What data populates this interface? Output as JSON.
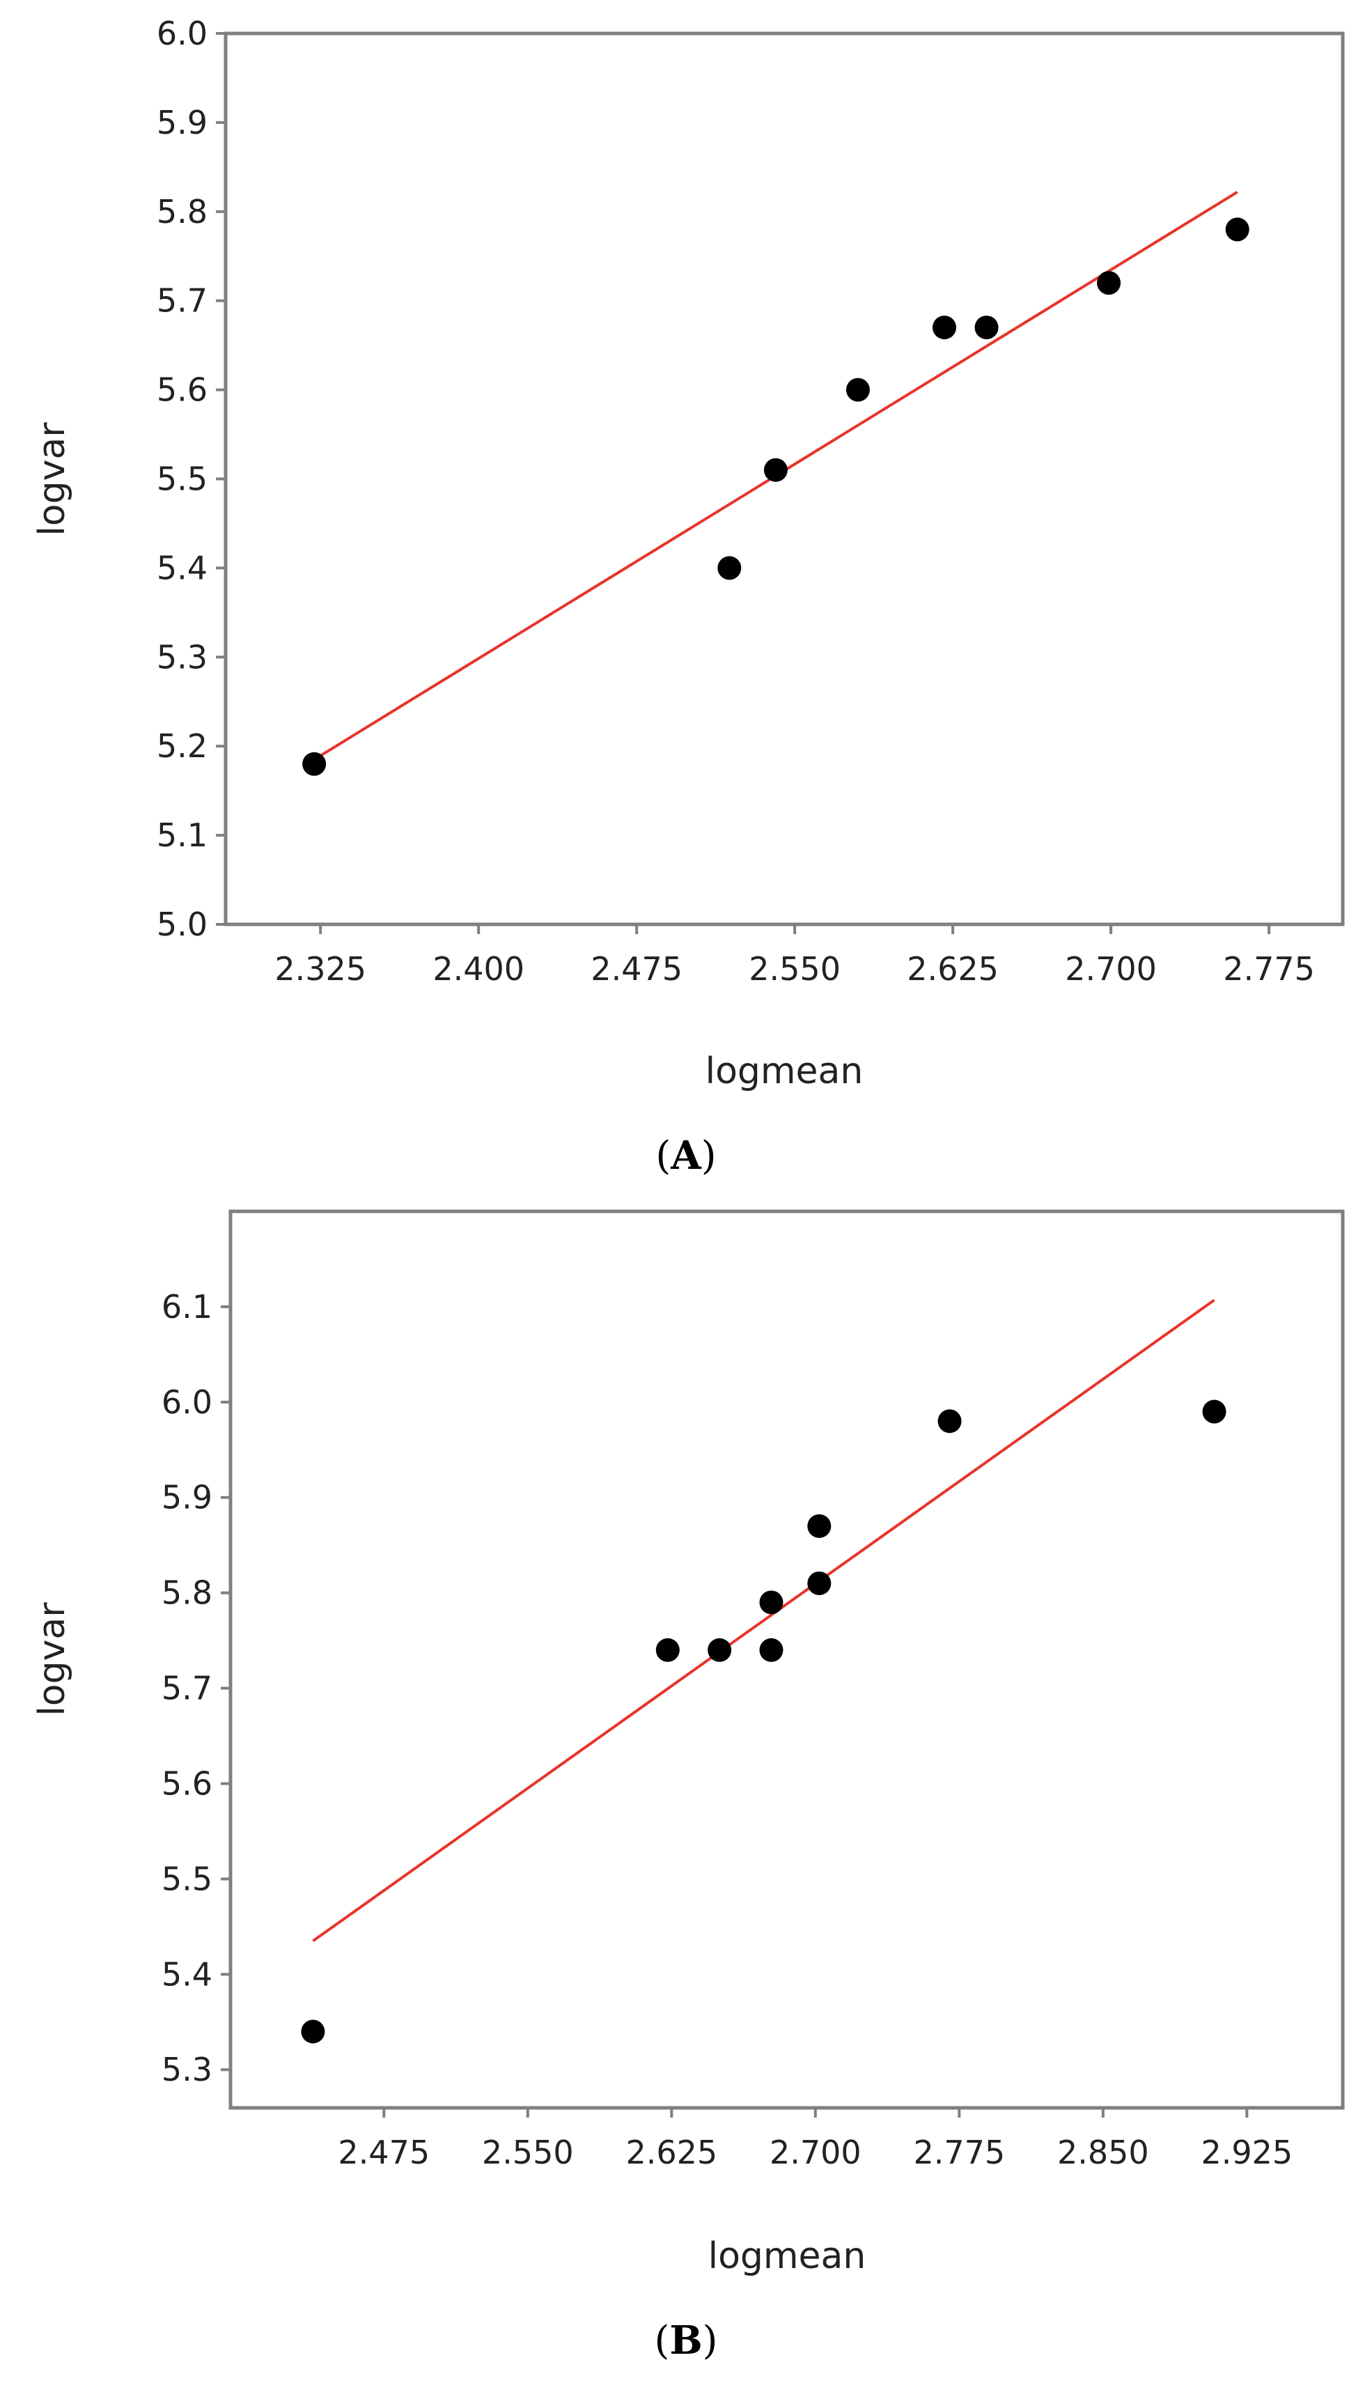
{
  "chart_data": [
    {
      "type": "scatter",
      "panel": "A",
      "caption": {
        "open": "(",
        "letter": "A",
        "close": ")"
      },
      "xlabel": "logmean",
      "ylabel": "logvar",
      "xlim": [
        2.28,
        2.81
      ],
      "ylim": [
        5.0,
        6.0
      ],
      "xticks": [
        "2.325",
        "2.400",
        "2.475",
        "2.550",
        "2.625",
        "2.700",
        "2.775"
      ],
      "yticks": [
        "5.0",
        "5.1",
        "5.2",
        "5.3",
        "5.4",
        "5.5",
        "5.6",
        "5.7",
        "5.8",
        "5.9",
        "6.0"
      ],
      "grid": false,
      "points": [
        {
          "x": 2.322,
          "y": 5.18
        },
        {
          "x": 2.519,
          "y": 5.4
        },
        {
          "x": 2.541,
          "y": 5.51
        },
        {
          "x": 2.58,
          "y": 5.6
        },
        {
          "x": 2.621,
          "y": 5.67
        },
        {
          "x": 2.641,
          "y": 5.67
        },
        {
          "x": 2.699,
          "y": 5.72
        },
        {
          "x": 2.76,
          "y": 5.78
        }
      ],
      "fit_line": {
        "x": [
          2.322,
          2.76
        ],
        "y": [
          5.185,
          5.822
        ]
      },
      "colors": {
        "points": "#000000",
        "fit_line": "#e8342a",
        "frame": "#7f7f7f"
      }
    },
    {
      "type": "scatter",
      "panel": "B",
      "caption": {
        "open": "(",
        "letter": "B",
        "close": ")"
      },
      "xlabel": "logmean",
      "ylabel": "logvar",
      "xlim": [
        2.395,
        2.975
      ],
      "ylim": [
        5.26,
        6.2
      ],
      "xticks": [
        "2.475",
        "2.550",
        "2.625",
        "2.700",
        "2.775",
        "2.850",
        "2.925"
      ],
      "yticks": [
        "5.3",
        "5.4",
        "5.5",
        "5.6",
        "5.7",
        "5.8",
        "5.9",
        "6.0",
        "6.1"
      ],
      "grid": false,
      "points": [
        {
          "x": 2.438,
          "y": 5.34
        },
        {
          "x": 2.623,
          "y": 5.74
        },
        {
          "x": 2.65,
          "y": 5.74
        },
        {
          "x": 2.677,
          "y": 5.74
        },
        {
          "x": 2.677,
          "y": 5.79
        },
        {
          "x": 2.702,
          "y": 5.81
        },
        {
          "x": 2.702,
          "y": 5.87
        },
        {
          "x": 2.77,
          "y": 5.98
        },
        {
          "x": 2.908,
          "y": 5.99
        }
      ],
      "fit_line": {
        "x": [
          2.438,
          2.908
        ],
        "y": [
          5.435,
          6.107
        ]
      },
      "colors": {
        "points": "#000000",
        "fit_line": "#e8342a",
        "frame": "#7f7f7f"
      }
    }
  ]
}
